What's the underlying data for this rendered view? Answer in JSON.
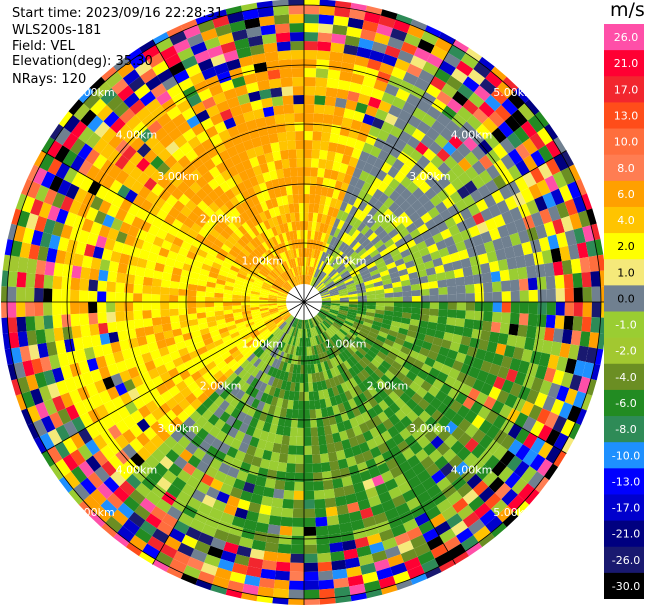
{
  "header": {
    "start_time": "Start time: 2023/09/16 22:28:31",
    "instrument": "WLS200s-181",
    "field": "Field: VEL",
    "elevation": "Elevation(deg): 35.30",
    "nrays": "NRays: 120"
  },
  "colorbar": {
    "unit": "m/s",
    "ticks": [
      "26.0",
      "21.0",
      "17.0",
      "13.0",
      "10.0",
      "8.0",
      "6.0",
      "4.0",
      "2.0",
      "1.0",
      "0.0",
      "-1.0",
      "-2.0",
      "-4.0",
      "-6.0",
      "-8.0",
      "-10.0",
      "-13.0",
      "-17.0",
      "-21.0",
      "-26.0",
      "-30.0"
    ],
    "colors": [
      "#ff4fa8",
      "#ff0033",
      "#f2262e",
      "#ff4d1a",
      "#ff6e3d",
      "#ff7d52",
      "#ffa000",
      "#ffc400",
      "#ffff00",
      "#f5e97a",
      "#708090",
      "#9acd32",
      "#a2c830",
      "#6b8e23",
      "#228b22",
      "#2e8b57",
      "#1e90ff",
      "#0000ff",
      "#0000cd",
      "#000080",
      "#191970",
      "#000000"
    ]
  },
  "chart_data": {
    "type": "heatmap",
    "projection": "polar PPI (plan position indicator)",
    "field": "VEL",
    "units": "m/s",
    "nrays": 120,
    "elevation_deg": 35.3,
    "range_rings": [
      "1.00km",
      "2.00km",
      "3.00km",
      "4.00km",
      "5.00km"
    ],
    "colorbar_range": [
      -30.0,
      26.0
    ],
    "dominant_patterns": [
      {
        "sector": "north-west to west, inner",
        "values_mps": [
          2.0,
          6.0
        ]
      },
      {
        "sector": "north-east, inner",
        "values_mps": [
          -1.0,
          0.0
        ]
      },
      {
        "sector": "south-east to south",
        "values_mps": [
          -6.0,
          -1.0
        ]
      },
      {
        "sector": "outer ring",
        "values_mps": "noisy, mixed full range"
      }
    ]
  }
}
